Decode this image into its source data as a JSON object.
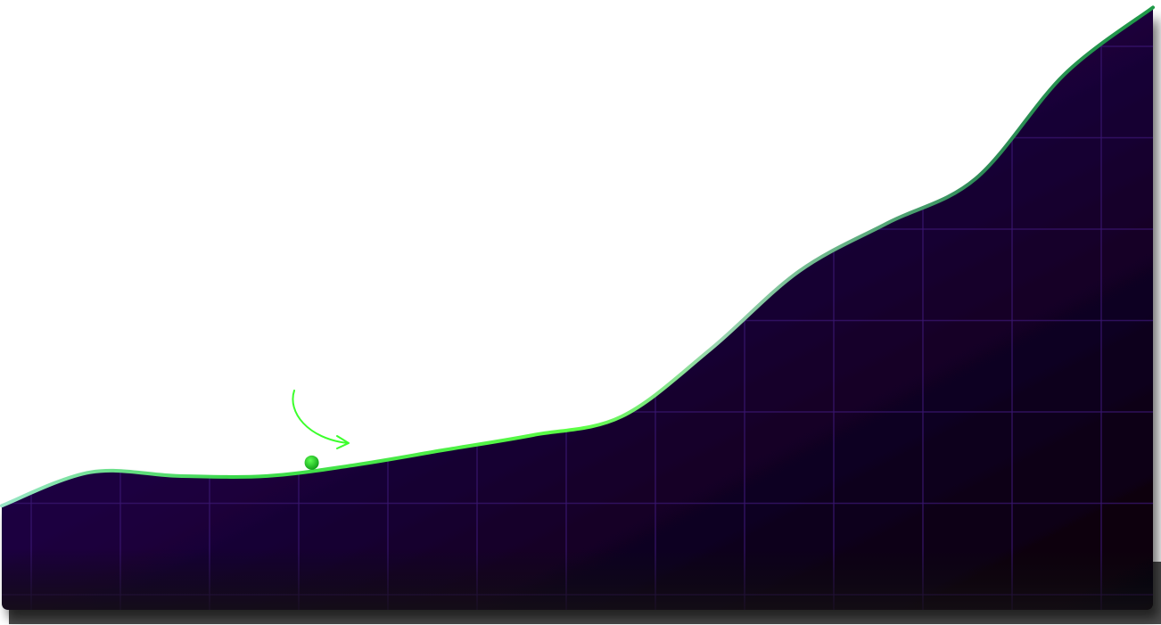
{
  "chart_data": {
    "type": "area",
    "title": "",
    "xlabel": "",
    "ylabel": "",
    "x": [
      0,
      1,
      2,
      3,
      4,
      5,
      6,
      7,
      8,
      9,
      10,
      11,
      12,
      13
    ],
    "series": [
      {
        "values": [
          14,
          18.5,
          18,
          18,
          19.5,
          21.5,
          23.5,
          26,
          35,
          45.5,
          52,
          58,
          72,
          81
        ]
      }
    ],
    "highlight": {
      "x": 3.5,
      "y": 19.8
    },
    "ylim": [
      0,
      82
    ],
    "xlim": [
      0,
      13
    ],
    "grid": true,
    "legend": "none"
  },
  "colors": {
    "fill_top": "#25044a",
    "fill_bottom": "#070507",
    "grid_line": "#3a1670",
    "line_light_green": "#4dff3a",
    "line_teal": "#2e8b57",
    "marker": "#1fd11f",
    "arrow": "#3cff2c",
    "background": "#ffffff"
  },
  "icons": {
    "marker": "highlight-dot-icon",
    "arrow": "curved-arrow-icon"
  }
}
